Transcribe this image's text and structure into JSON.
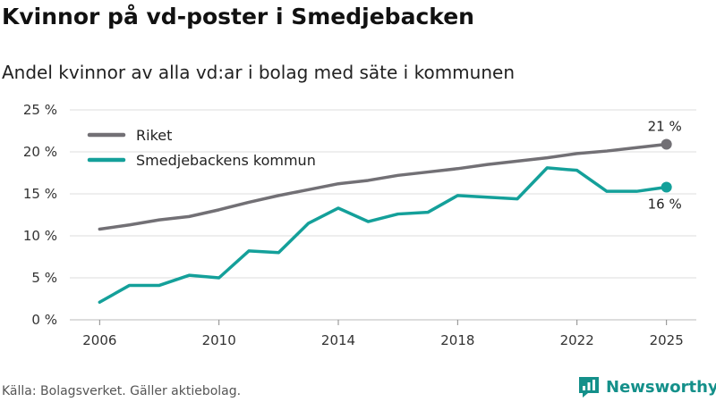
{
  "header": {
    "title": "Kvinnor på vd-poster i Smedjebacken",
    "subtitle": "Andel kvinnor av alla vd:ar i bolag med säte i kommunen"
  },
  "footer": {
    "source": "Källa: Bolagsverket. Gäller aktiebolag.",
    "brand": "Newsworthy"
  },
  "colors": {
    "riket": "#727075",
    "kommun": "#14a09a",
    "grid": "#dddddd",
    "brand": "#14908a"
  },
  "chart_data": {
    "type": "line",
    "title": "Kvinnor på vd-poster i Smedjebacken",
    "xlabel": "",
    "ylabel": "",
    "x": [
      2006,
      2007,
      2008,
      2009,
      2010,
      2011,
      2012,
      2013,
      2014,
      2015,
      2016,
      2017,
      2018,
      2019,
      2020,
      2021,
      2022,
      2023,
      2024,
      2025
    ],
    "xticks": [
      2006,
      2010,
      2014,
      2018,
      2022,
      2025
    ],
    "xtick_labels": [
      "2006",
      "2010",
      "2014",
      "2018",
      "2022",
      "2025"
    ],
    "ylim": [
      0,
      25
    ],
    "yticks": [
      0,
      5,
      10,
      15,
      20,
      25
    ],
    "ytick_labels": [
      "0 %",
      "5 %",
      "10 %",
      "15 %",
      "20 %",
      "25 %"
    ],
    "grid": true,
    "legend_position": "top-left",
    "series": [
      {
        "name": "Riket",
        "color_key": "riket",
        "values": [
          10.8,
          11.3,
          11.9,
          12.3,
          13.1,
          14.0,
          14.8,
          15.5,
          16.2,
          16.6,
          17.2,
          17.6,
          18.0,
          18.5,
          18.9,
          19.3,
          19.8,
          20.1,
          20.5,
          20.9
        ],
        "end_label": "21 %"
      },
      {
        "name": "Smedjebackens kommun",
        "color_key": "kommun",
        "values": [
          2.1,
          4.1,
          4.1,
          5.3,
          5.0,
          8.2,
          8.0,
          11.5,
          13.3,
          11.7,
          12.6,
          12.8,
          14.8,
          14.6,
          14.4,
          18.1,
          17.8,
          15.3,
          15.3,
          15.8
        ],
        "end_label": "16 %"
      }
    ]
  }
}
